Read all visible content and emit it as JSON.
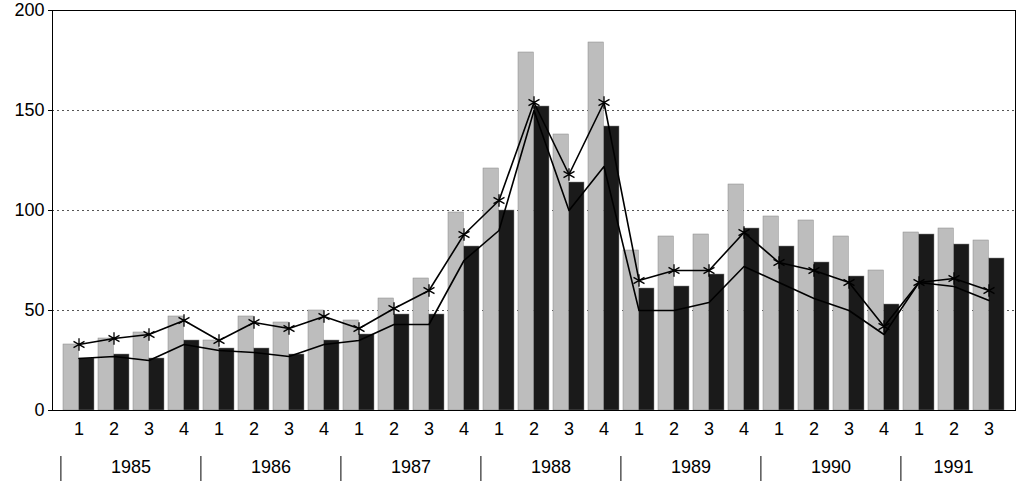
{
  "chart_data": {
    "type": "bar",
    "categories": [
      "1",
      "2",
      "3",
      "4",
      "1",
      "2",
      "3",
      "4",
      "1",
      "2",
      "3",
      "4",
      "1",
      "2",
      "3",
      "4",
      "1",
      "2",
      "3",
      "4",
      "1",
      "2",
      "3",
      "4",
      "1",
      "2",
      "3"
    ],
    "x_groups": [
      "1985",
      "1985",
      "1985",
      "1985",
      "1986",
      "1986",
      "1986",
      "1986",
      "1987",
      "1987",
      "1987",
      "1987",
      "1988",
      "1988",
      "1988",
      "1988",
      "1989",
      "1989",
      "1989",
      "1989",
      "1990",
      "1990",
      "1990",
      "1990",
      "1991",
      "1991",
      "1991"
    ],
    "series": [
      {
        "type": "bar",
        "color": "#bdbdbd",
        "values": [
          33,
          36,
          39,
          47,
          35,
          47,
          44,
          50,
          45,
          56,
          66,
          99,
          121,
          179,
          138,
          184,
          80,
          87,
          88,
          113,
          97,
          95,
          87,
          70,
          89,
          91,
          85
        ]
      },
      {
        "type": "bar",
        "color": "#1a1a1a",
        "values": [
          26,
          28,
          26,
          35,
          31,
          31,
          28,
          35,
          38,
          48,
          48,
          82,
          100,
          152,
          114,
          142,
          61,
          62,
          68,
          91,
          82,
          74,
          67,
          53,
          88,
          83,
          76
        ]
      },
      {
        "type": "line",
        "color": "#000000",
        "marker": "asterisk",
        "values": [
          33,
          36,
          38,
          45,
          35,
          44,
          41,
          47,
          41,
          51,
          60,
          88,
          105,
          154,
          118,
          154,
          65,
          70,
          70,
          89,
          74,
          70,
          64,
          42,
          64,
          66,
          60
        ]
      },
      {
        "type": "line",
        "color": "#000000",
        "marker": "none",
        "values": [
          26,
          27,
          25,
          33,
          30,
          29,
          27,
          33,
          35,
          43,
          43,
          75,
          90,
          150,
          100,
          122,
          50,
          50,
          54,
          72,
          64,
          56,
          50,
          38,
          64,
          62,
          55
        ]
      }
    ],
    "ylim": [
      0,
      200
    ],
    "yticks": [
      0,
      50,
      100,
      150,
      200
    ],
    "grid": true
  }
}
